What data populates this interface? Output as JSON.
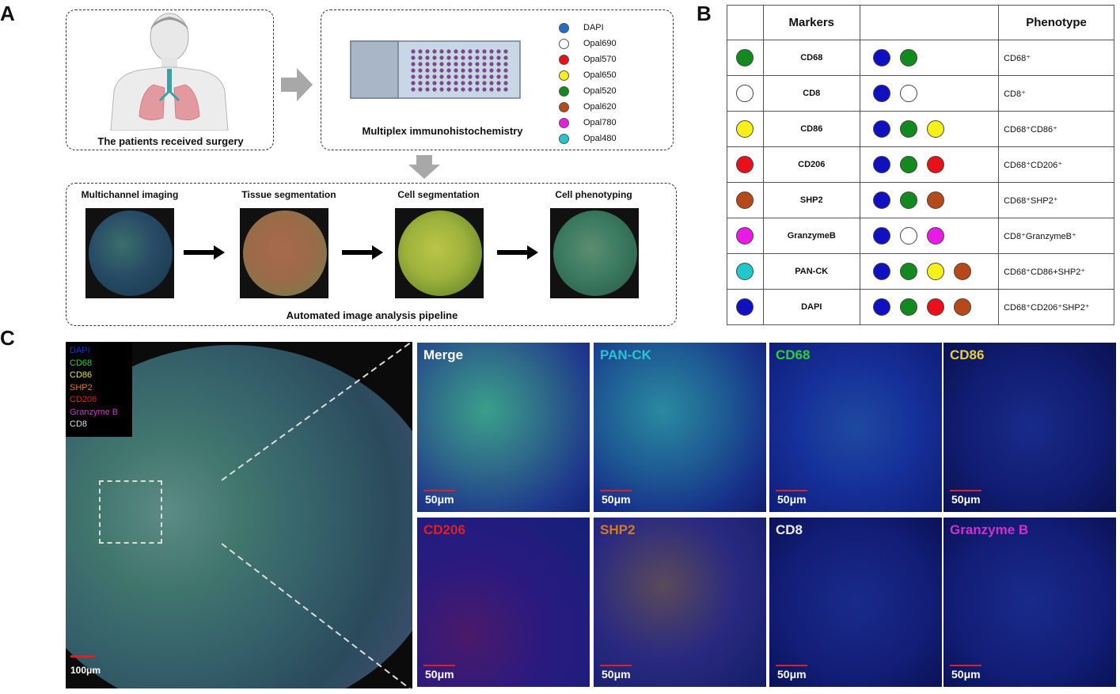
{
  "panel_labels": {
    "a": "A",
    "b": "B",
    "c": "C"
  },
  "panel_a": {
    "patient_caption": "The patients received surgery",
    "mihc_caption": "Multiplex immunohistochemistry",
    "legend": [
      {
        "label": "DAPI",
        "color": "#1f6fc8"
      },
      {
        "label": "Opal690",
        "color": "#ffffff"
      },
      {
        "label": "Opal570",
        "color": "#e8101a"
      },
      {
        "label": "Opal650",
        "color": "#f5f01a"
      },
      {
        "label": "Opal520",
        "color": "#138a1f"
      },
      {
        "label": "Opal620",
        "color": "#b5491a"
      },
      {
        "label": "Opal780",
        "color": "#e61ce6"
      },
      {
        "label": "Opal480",
        "color": "#20c8cc"
      }
    ],
    "pipeline_steps": [
      "Multichannel imaging",
      "Tissue segmentation",
      "Cell segmentation",
      "Cell phenotyping"
    ],
    "pipeline_caption": "Automated image analysis pipeline"
  },
  "panel_b": {
    "headers": {
      "markers": "Markers",
      "combo": "",
      "phenotype": "Phenotype"
    },
    "rows": [
      {
        "color": "#138a1f",
        "marker": "CD68",
        "combo": [
          "#1010c0",
          "#138a1f"
        ],
        "phenotype": "CD68⁺"
      },
      {
        "color": "#ffffff",
        "marker": "CD8",
        "combo": [
          "#1010c0",
          "#ffffff"
        ],
        "phenotype": "CD8⁺"
      },
      {
        "color": "#f5f01a",
        "marker": "CD86",
        "combo": [
          "#1010c0",
          "#138a1f",
          "#f5f01a"
        ],
        "phenotype": "CD68⁺CD86⁺"
      },
      {
        "color": "#e8101a",
        "marker": "CD206",
        "combo": [
          "#1010c0",
          "#138a1f",
          "#e8101a"
        ],
        "phenotype": "CD68⁺CD206⁺"
      },
      {
        "color": "#b5491a",
        "marker": "SHP2",
        "combo": [
          "#1010c0",
          "#138a1f",
          "#b5491a"
        ],
        "phenotype": "CD68⁺SHP2⁺"
      },
      {
        "color": "#e61ce6",
        "marker": "GranzymeB",
        "combo": [
          "#1010c0",
          "#ffffff",
          "#e61ce6"
        ],
        "phenotype": "CD8⁺GranzymeB⁺"
      },
      {
        "color": "#20c8cc",
        "marker": "PAN-CK",
        "combo": [
          "#1010c0",
          "#138a1f",
          "#f5f01a",
          "#b5491a"
        ],
        "phenotype": "CD68⁺CD86+SHP2⁺"
      },
      {
        "color": "#1010c0",
        "marker": "DAPI",
        "combo": [
          "#1010c0",
          "#138a1f",
          "#e8101a",
          "#b5491a"
        ],
        "phenotype": "CD68⁺CD206⁺SHP2⁺"
      }
    ]
  },
  "panel_c": {
    "overview_legend": [
      {
        "label": "DAPI",
        "color": "#1a2fd0"
      },
      {
        "label": "CD68",
        "color": "#2bd22b"
      },
      {
        "label": "CD86",
        "color": "#e8e040"
      },
      {
        "label": "SHP2",
        "color": "#e07a2a"
      },
      {
        "label": "CD206",
        "color": "#e02020"
      },
      {
        "label": "Granzyme B",
        "color": "#d030d0"
      },
      {
        "label": "CD8",
        "color": "#dddddd"
      }
    ],
    "overview_scalebar": "100μm",
    "tiles": [
      {
        "label": "Merge",
        "color": "#ffffff",
        "scalebar": "50μm"
      },
      {
        "label": "PAN-CK",
        "color": "#29c4d4",
        "scalebar": "50μm"
      },
      {
        "label": "CD68",
        "color": "#2bd22b",
        "scalebar": "50μm"
      },
      {
        "label": "CD86",
        "color": "#e8d040",
        "scalebar": "50μm"
      },
      {
        "label": "CD206",
        "color": "#e02020",
        "scalebar": "50μm"
      },
      {
        "label": "SHP2",
        "color": "#d07a2a",
        "scalebar": "50μm"
      },
      {
        "label": "CD8",
        "color": "#eeeeee",
        "scalebar": "50μm"
      },
      {
        "label": "Granzyme B",
        "color": "#d030d0",
        "scalebar": "50μm"
      }
    ]
  }
}
